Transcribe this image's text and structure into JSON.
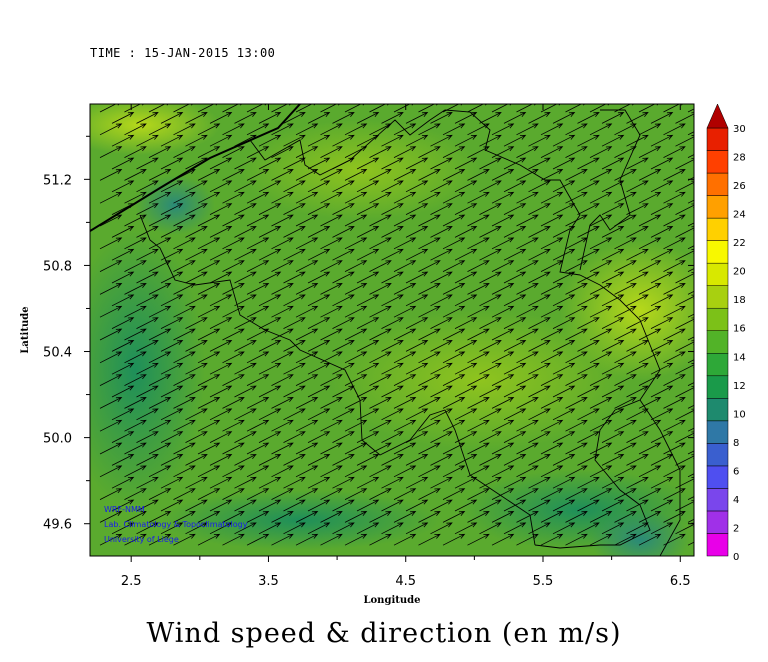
{
  "time_label": "TIME : 15-JAN-2015 13:00",
  "main_title": "Wind speed & direction (en m/s)",
  "credits": [
    "WRF-NMM",
    "Lab. Climatology & Topoclimatology",
    "University of Liege"
  ],
  "colors": {
    "colorbar": [
      "#e800e8",
      "#a030e8",
      "#7a46ec",
      "#4f4ff0",
      "#3a5fcf",
      "#2f78a6",
      "#1e8a6e",
      "#1a9a4a",
      "#2ea838",
      "#52b328",
      "#7cc118",
      "#a8d010",
      "#d8e800",
      "#f8f800",
      "#ffd000",
      "#ffa000",
      "#ff7000",
      "#ff4000",
      "#e82000",
      "#b00000"
    ],
    "field_base": "#5aaa2e",
    "wind_arrows": "#000000"
  },
  "chart_data": {
    "type": "heatmap",
    "overlay": "wind vectors",
    "xlabel": "Longitude",
    "ylabel": "Latitude",
    "xlim": [
      2.2,
      6.6
    ],
    "ylim": [
      49.45,
      51.55
    ],
    "xticks": [
      2.5,
      3.5,
      4.5,
      5.5,
      6.5
    ],
    "yticks": [
      49.6,
      50.0,
      50.4,
      50.8,
      51.2
    ],
    "xtick_labels": [
      "2.5",
      "3.5",
      "4.5",
      "5.5",
      "6.5"
    ],
    "ytick_labels": [
      "49.6",
      "50.0",
      "50.4",
      "50.8",
      "51.2"
    ],
    "colorbar": {
      "levels": [
        0,
        2,
        4,
        6,
        8,
        10,
        12,
        14,
        16,
        18,
        20,
        22,
        24,
        26,
        28,
        30
      ],
      "labels": [
        "0",
        "2",
        "4",
        "6",
        "8",
        "10",
        "12",
        "14",
        "16",
        "18",
        "20",
        "22",
        "24",
        "26",
        "28",
        "30"
      ]
    },
    "wind_speed_range": [
      10,
      18
    ],
    "typical_wind_speed": 13,
    "wind_direction": "from southwest"
  }
}
